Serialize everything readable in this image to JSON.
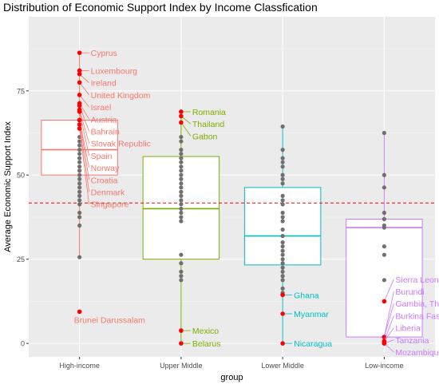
{
  "chart_data": {
    "type": "boxplot",
    "title": "Distribution of Economic Support Index by Income Classfication",
    "xlabel": "group",
    "ylabel": "Average Economic Support Index",
    "ylim": [
      -4,
      97
    ],
    "yticks": [
      0,
      25,
      50,
      75
    ],
    "grid": true,
    "legend": "none",
    "reference_line": {
      "y": 41.7,
      "style": "dashed",
      "color": "#ff0000"
    },
    "categories": [
      "High-income",
      "Upper Middle",
      "Lower Middle",
      "Low-income"
    ],
    "colors": {
      "High-income": "#F8766D",
      "Upper Middle": "#7CAE00",
      "Lower Middle": "#00BFC4",
      "Low-income": "#C77CFF"
    },
    "boxes": [
      {
        "group": "High-income",
        "min": 25.6,
        "q1": 50,
        "median": 57.5,
        "q3": 66.3,
        "max": 86.3
      },
      {
        "group": "Upper Middle",
        "min": 0,
        "q1": 25,
        "median": 40,
        "q3": 55.5,
        "max": 68.8
      },
      {
        "group": "Lower Middle",
        "min": 0,
        "q1": 23.3,
        "median": 31.9,
        "q3": 46.3,
        "max": 64.4
      },
      {
        "group": "Low-income",
        "min": 0,
        "q1": 1.9,
        "median": 34.4,
        "q3": 36.9,
        "max": 62.5
      }
    ],
    "points": [
      {
        "group": "High-income",
        "values": [
          86.3,
          81,
          80,
          77.5,
          73.8,
          71.3,
          70.6,
          69.4,
          68.8,
          66.3,
          65,
          61.3,
          60,
          58.8,
          57.5,
          56.3,
          55,
          53.8,
          52.5,
          51.3,
          50,
          48.8,
          47.5,
          46.3,
          45,
          43.8,
          42.5,
          41.3,
          38.8,
          37.5,
          35,
          25.6,
          9.4
        ]
      },
      {
        "group": "Upper Middle",
        "values": [
          68.8,
          67.5,
          65.6,
          61.3,
          60,
          57.5,
          56.3,
          55,
          53.8,
          52.5,
          51.3,
          50,
          48.8,
          47.5,
          46.3,
          45,
          43.8,
          42.5,
          41.3,
          40,
          38.8,
          37.5,
          36.3,
          26.3,
          23.8,
          21.3,
          20,
          18.8,
          3.8,
          0
        ]
      },
      {
        "group": "Lower Middle",
        "values": [
          64.4,
          57.5,
          55,
          53.8,
          52.5,
          50,
          48.8,
          47.5,
          43.8,
          42.5,
          41.3,
          38.8,
          37.5,
          36.3,
          33.8,
          31.9,
          30,
          28.8,
          27.5,
          26.3,
          25,
          23.8,
          22.5,
          21.3,
          20,
          18.8,
          16.3,
          15,
          14.4,
          8.8,
          0
        ]
      },
      {
        "group": "Low-income",
        "values": [
          62.5,
          50,
          46.3,
          38.8,
          36.9,
          35,
          34.4,
          28.8,
          26.3,
          18.8,
          12.5,
          1.9,
          0.6
        ]
      }
    ],
    "labeled_points": [
      {
        "group": "High-income",
        "label": "Cyprus",
        "value": 86.3
      },
      {
        "group": "High-income",
        "label": "Luxembourg",
        "value": 81
      },
      {
        "group": "High-income",
        "label": "Ireland",
        "value": 80
      },
      {
        "group": "High-income",
        "label": "United Kingdom",
        "value": 77.5
      },
      {
        "group": "High-income",
        "label": "Israel",
        "value": 73.8
      },
      {
        "group": "High-income",
        "label": "Austria",
        "value": 71.3
      },
      {
        "group": "High-income",
        "label": "Bahrain",
        "value": 70.6
      },
      {
        "group": "High-income",
        "label": "Slovak Republic",
        "value": 69.4
      },
      {
        "group": "High-income",
        "label": "Spain",
        "value": 68.8
      },
      {
        "group": "High-income",
        "label": "Norway",
        "value": 66.3
      },
      {
        "group": "High-income",
        "label": "Croatia",
        "value": 66.3
      },
      {
        "group": "High-income",
        "label": "Denmark",
        "value": 65
      },
      {
        "group": "High-income",
        "label": "Singapore",
        "value": 63.8
      },
      {
        "group": "High-income",
        "label": "Brunei Darussalam",
        "value": 9.4
      },
      {
        "group": "Upper Middle",
        "label": "Romania",
        "value": 68.8
      },
      {
        "group": "Upper Middle",
        "label": "Thailand",
        "value": 67.5
      },
      {
        "group": "Upper Middle",
        "label": "Gabon",
        "value": 65.6
      },
      {
        "group": "Upper Middle",
        "label": "Mexico",
        "value": 3.8
      },
      {
        "group": "Upper Middle",
        "label": "Belarus",
        "value": 0
      },
      {
        "group": "Lower Middle",
        "label": "Ghana",
        "value": 14.4
      },
      {
        "group": "Lower Middle",
        "label": "Myanmar",
        "value": 8.8
      },
      {
        "group": "Lower Middle",
        "label": "Nicaragua",
        "value": 0
      },
      {
        "group": "Low-income",
        "label": "Sierra Leone",
        "value": 12.5
      },
      {
        "group": "Low-income",
        "label": "Burundi",
        "value": 1.9
      },
      {
        "group": "Low-income",
        "label": "Gambia, The",
        "value": 1.9
      },
      {
        "group": "Low-income",
        "label": "Burkina Faso",
        "value": 0.6
      },
      {
        "group": "Low-income",
        "label": "Liberia",
        "value": 0.6
      },
      {
        "group": "Low-income",
        "label": "Tanzania",
        "value": 0
      },
      {
        "group": "Low-income",
        "label": "Mozambique",
        "value": 0
      }
    ]
  }
}
